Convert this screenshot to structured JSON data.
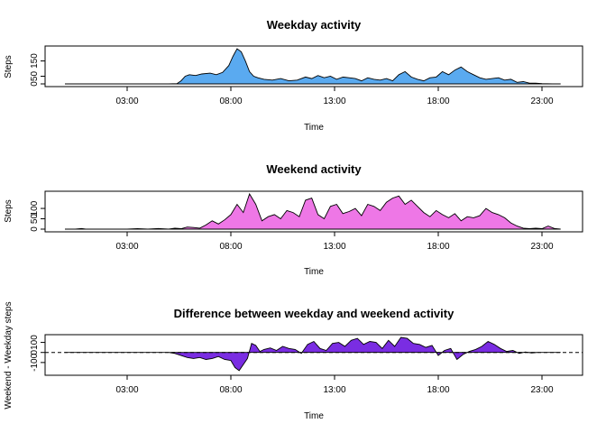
{
  "chart_data": [
    {
      "type": "area",
      "title": "Weekday activity",
      "xlabel": "Time",
      "ylabel": "Steps",
      "xlim": [
        0,
        24
      ],
      "ylim": [
        0,
        230
      ],
      "fill_color": "#5aaaf0",
      "x_ticks": [
        3,
        8,
        13,
        18,
        23
      ],
      "x_tick_labels": [
        "03:00",
        "08:00",
        "13:00",
        "18:00",
        "23:00"
      ],
      "y_ticks": [
        0,
        50,
        150
      ],
      "y_tick_labels": [
        "0",
        "50",
        "150"
      ],
      "x": [
        0,
        1,
        2,
        3,
        4,
        5,
        5.4,
        5.6,
        5.8,
        6,
        6.3,
        6.6,
        7,
        7.3,
        7.6,
        7.9,
        8.1,
        8.3,
        8.5,
        8.7,
        8.9,
        9.1,
        9.3,
        9.6,
        10,
        10.4,
        10.8,
        11.2,
        11.6,
        11.9,
        12.2,
        12.5,
        12.8,
        13.1,
        13.4,
        13.7,
        14,
        14.3,
        14.6,
        14.9,
        15.2,
        15.5,
        15.8,
        16.1,
        16.4,
        16.7,
        17,
        17.3,
        17.6,
        17.9,
        18.2,
        18.5,
        18.8,
        19.1,
        19.4,
        19.7,
        20,
        20.3,
        20.6,
        20.9,
        21.2,
        21.5,
        21.8,
        22.1,
        22.4,
        22.7,
        23,
        23.5,
        23.9
      ],
      "values": [
        0,
        0,
        0,
        0,
        0,
        0,
        2,
        20,
        50,
        60,
        55,
        65,
        70,
        60,
        75,
        120,
        180,
        230,
        210,
        150,
        80,
        50,
        40,
        30,
        25,
        35,
        20,
        25,
        45,
        35,
        55,
        40,
        50,
        30,
        45,
        40,
        35,
        20,
        40,
        30,
        25,
        35,
        20,
        60,
        80,
        45,
        30,
        20,
        40,
        45,
        80,
        60,
        90,
        110,
        80,
        60,
        40,
        30,
        35,
        40,
        25,
        30,
        10,
        15,
        5,
        5,
        2,
        0,
        0
      ]
    },
    {
      "type": "area",
      "title": "Weekend activity",
      "xlabel": "Time",
      "ylabel": "Steps",
      "xlim": [
        0,
        24
      ],
      "ylim": [
        0,
        170
      ],
      "fill_color": "#ee77e6",
      "x_ticks": [
        3,
        8,
        13,
        18,
        23
      ],
      "x_tick_labels": [
        "03:00",
        "08:00",
        "13:00",
        "18:00",
        "23:00"
      ],
      "y_ticks": [
        0,
        50,
        100
      ],
      "y_tick_labels": [
        "0",
        "50",
        "100"
      ],
      "x": [
        0,
        0.5,
        0.8,
        1,
        2,
        3,
        3.5,
        4,
        4.5,
        5,
        5.3,
        5.6,
        5.9,
        6.2,
        6.5,
        6.8,
        7.1,
        7.4,
        7.7,
        8,
        8.3,
        8.6,
        8.9,
        9.2,
        9.5,
        9.8,
        10.1,
        10.4,
        10.7,
        11,
        11.3,
        11.6,
        11.9,
        12.2,
        12.5,
        12.8,
        13.1,
        13.4,
        13.7,
        14,
        14.3,
        14.6,
        14.9,
        15.2,
        15.5,
        15.8,
        16.1,
        16.4,
        16.7,
        17,
        17.3,
        17.6,
        17.9,
        18.2,
        18.5,
        18.8,
        19.1,
        19.4,
        19.7,
        20,
        20.3,
        20.6,
        20.9,
        21.2,
        21.5,
        21.8,
        22.1,
        22.4,
        22.7,
        23,
        23.3,
        23.6,
        23.9
      ],
      "values": [
        0,
        0,
        3,
        0,
        0,
        0,
        2,
        0,
        3,
        0,
        5,
        2,
        10,
        8,
        5,
        20,
        40,
        25,
        45,
        70,
        120,
        80,
        170,
        120,
        40,
        60,
        70,
        50,
        90,
        80,
        60,
        140,
        150,
        70,
        50,
        110,
        120,
        75,
        85,
        100,
        65,
        120,
        110,
        90,
        130,
        150,
        160,
        120,
        140,
        110,
        80,
        60,
        90,
        70,
        55,
        75,
        40,
        60,
        55,
        65,
        100,
        80,
        70,
        55,
        30,
        15,
        5,
        2,
        5,
        2,
        15,
        3,
        0
      ]
    },
    {
      "type": "area",
      "title": "Difference between weekday and weekend activity",
      "xlabel": "Time",
      "ylabel": "Weekend - Weekday steps",
      "xlim": [
        0,
        24
      ],
      "ylim": [
        -200,
        150
      ],
      "fill_color": "#7a2de2",
      "x_ticks": [
        3,
        8,
        13,
        18,
        23
      ],
      "x_tick_labels": [
        "03:00",
        "08:00",
        "13:00",
        "18:00",
        "23:00"
      ],
      "y_ticks": [
        -100,
        0,
        100
      ],
      "y_tick_labels": [
        "-100",
        "0",
        "100"
      ],
      "reference_line": 0,
      "x": [
        0,
        1,
        2,
        3,
        4,
        5,
        5.3,
        5.6,
        5.9,
        6.2,
        6.5,
        6.8,
        7.1,
        7.4,
        7.7,
        8,
        8.2,
        8.4,
        8.6,
        8.8,
        9,
        9.2,
        9.4,
        9.6,
        9.9,
        10.2,
        10.5,
        10.8,
        11.1,
        11.4,
        11.7,
        12,
        12.3,
        12.6,
        12.9,
        13.2,
        13.5,
        13.8,
        14.1,
        14.4,
        14.7,
        15,
        15.3,
        15.6,
        15.9,
        16.2,
        16.5,
        16.8,
        17.1,
        17.4,
        17.7,
        18,
        18.3,
        18.6,
        18.9,
        19.2,
        19.5,
        19.8,
        20.1,
        20.4,
        20.7,
        21,
        21.3,
        21.6,
        21.9,
        22.2,
        22.5,
        22.8,
        23.1,
        23.5,
        23.9
      ],
      "values": [
        0,
        0,
        0,
        0,
        0,
        0,
        -10,
        -30,
        -50,
        -60,
        -50,
        -70,
        -60,
        -40,
        -70,
        -80,
        -150,
        -180,
        -120,
        -60,
        90,
        70,
        10,
        30,
        45,
        20,
        60,
        40,
        30,
        -10,
        80,
        110,
        40,
        20,
        90,
        100,
        60,
        120,
        140,
        80,
        110,
        100,
        40,
        120,
        60,
        150,
        140,
        90,
        80,
        50,
        70,
        -30,
        20,
        40,
        -70,
        -20,
        10,
        30,
        60,
        110,
        80,
        40,
        10,
        20,
        -10,
        5,
        -5,
        0,
        0,
        0,
        0
      ]
    }
  ]
}
